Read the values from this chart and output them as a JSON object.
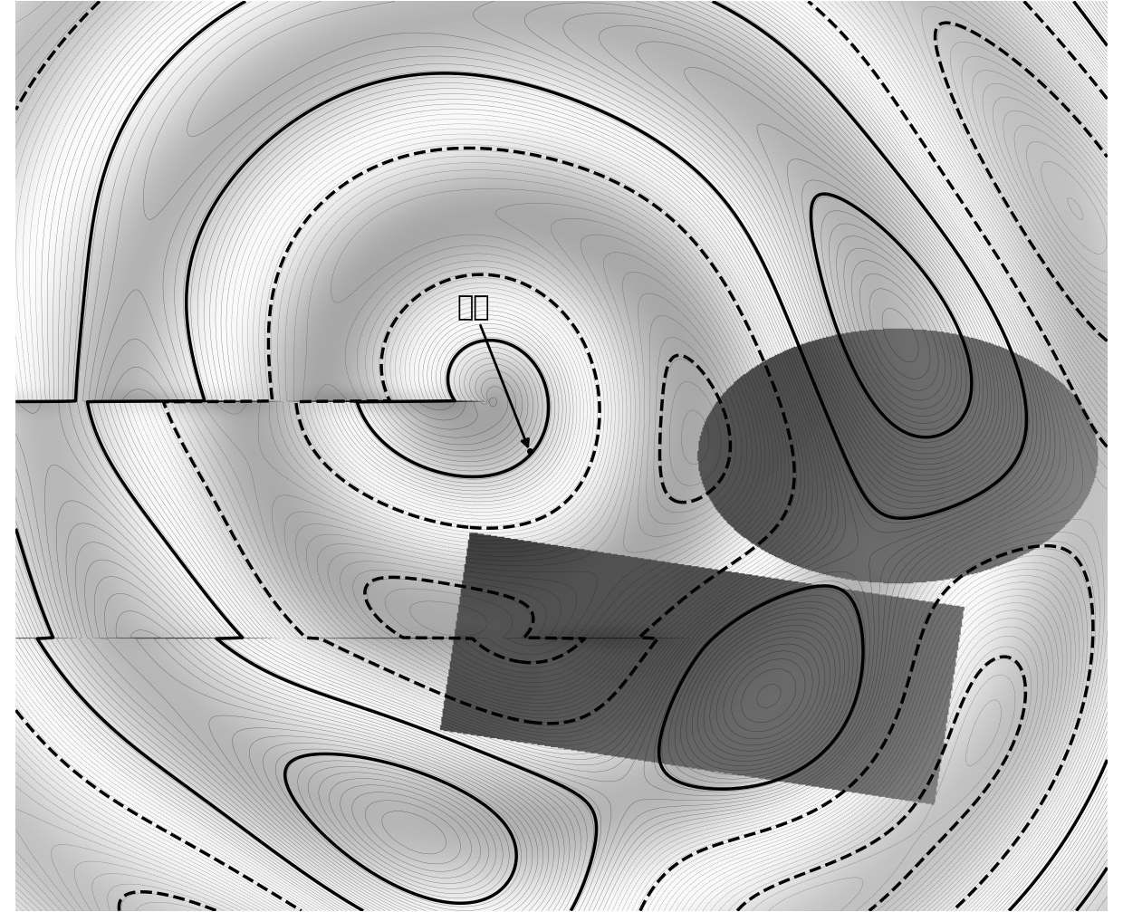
{
  "figsize": [
    12.4,
    10.07
  ],
  "dpi": 100,
  "background_color": "#ffffff",
  "annotation_text": "天线",
  "xlim": [
    -5.5,
    6.5
  ],
  "ylim": [
    -5.5,
    4.5
  ],
  "antenna_x": -0.3,
  "antenna_y": 0.1,
  "n_fine_contours": 80,
  "n_bold_contours": 6,
  "fine_lw": 0.25,
  "bold_lw": 2.5
}
